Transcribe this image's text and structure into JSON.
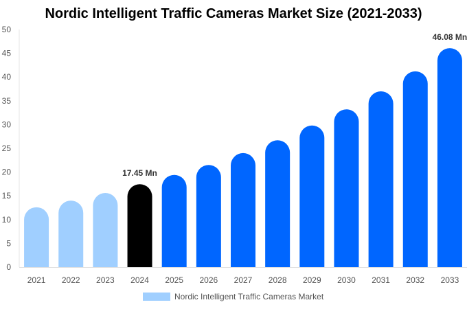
{
  "chart_data": {
    "type": "bar",
    "title": "Nordic Intelligent Traffic Cameras Market Size (2021-2033)",
    "categories": [
      "2021",
      "2022",
      "2023",
      "2024",
      "2025",
      "2026",
      "2027",
      "2028",
      "2029",
      "2030",
      "2031",
      "2032",
      "2033"
    ],
    "series": [
      {
        "name": "Nordic Intelligent Traffic Cameras Market",
        "values": [
          12.6,
          14.0,
          15.6,
          17.45,
          19.4,
          21.5,
          24.0,
          26.7,
          29.8,
          33.2,
          37.0,
          41.2,
          46.08
        ]
      }
    ],
    "data_labels": [
      {
        "category": "2024",
        "text": "17.45 Mn"
      },
      {
        "category": "2033",
        "text": "46.08 Mn"
      }
    ],
    "ylim": [
      0,
      50
    ],
    "yticks": [
      0,
      5,
      10,
      15,
      20,
      25,
      30,
      35,
      40,
      45,
      50
    ],
    "grid": false,
    "legend": "bottom",
    "colors": {
      "historical": "#a0cfff",
      "base_year": "#000000",
      "forecast": "#0066ff"
    },
    "color_by_category": [
      "historical",
      "historical",
      "historical",
      "base_year",
      "forecast",
      "forecast",
      "forecast",
      "forecast",
      "forecast",
      "forecast",
      "forecast",
      "forecast",
      "forecast"
    ]
  }
}
